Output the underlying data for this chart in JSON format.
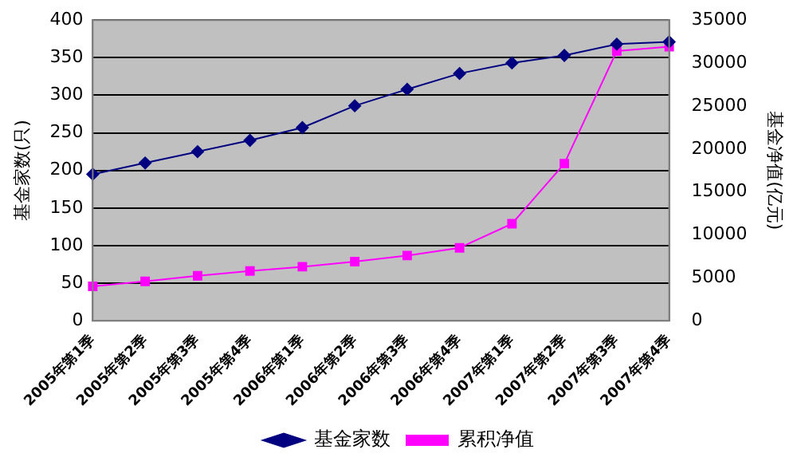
{
  "chart_data": {
    "type": "line",
    "categories": [
      "2005年第1季",
      "2005年第2季",
      "2005年第3季",
      "2005年第4季",
      "2006年第1季",
      "2006年第2季",
      "2006年第3季",
      "2006年第4季",
      "2007年第1季",
      "2007年第2季",
      "2007年第3季",
      "2007年第4季"
    ],
    "series": [
      {
        "name": "基金家数",
        "color": "#000080",
        "marker": "diamond",
        "values": [
          195,
          210,
          225,
          240,
          257,
          286,
          308,
          329,
          343,
          353,
          368,
          371
        ]
      },
      {
        "name": "累积净值",
        "color": "#ff00ff",
        "marker": "square",
        "axis": "y2",
        "values": [
          4010,
          4600,
          5250,
          5800,
          6300,
          6900,
          7600,
          8500,
          11300,
          18300,
          31400,
          31900
        ]
      }
    ],
    "ylabel": "基金家数(只)",
    "y2label": "基金净值(亿元)",
    "ylim": [
      0,
      400
    ],
    "yticks": [
      0,
      50,
      100,
      150,
      200,
      250,
      300,
      350,
      400
    ],
    "y2lim": [
      0,
      35000
    ],
    "y2ticks": [
      0,
      5000,
      10000,
      15000,
      20000,
      25000,
      30000,
      35000
    ],
    "grid": "y",
    "legend": "bottom",
    "line_style": "solid"
  }
}
